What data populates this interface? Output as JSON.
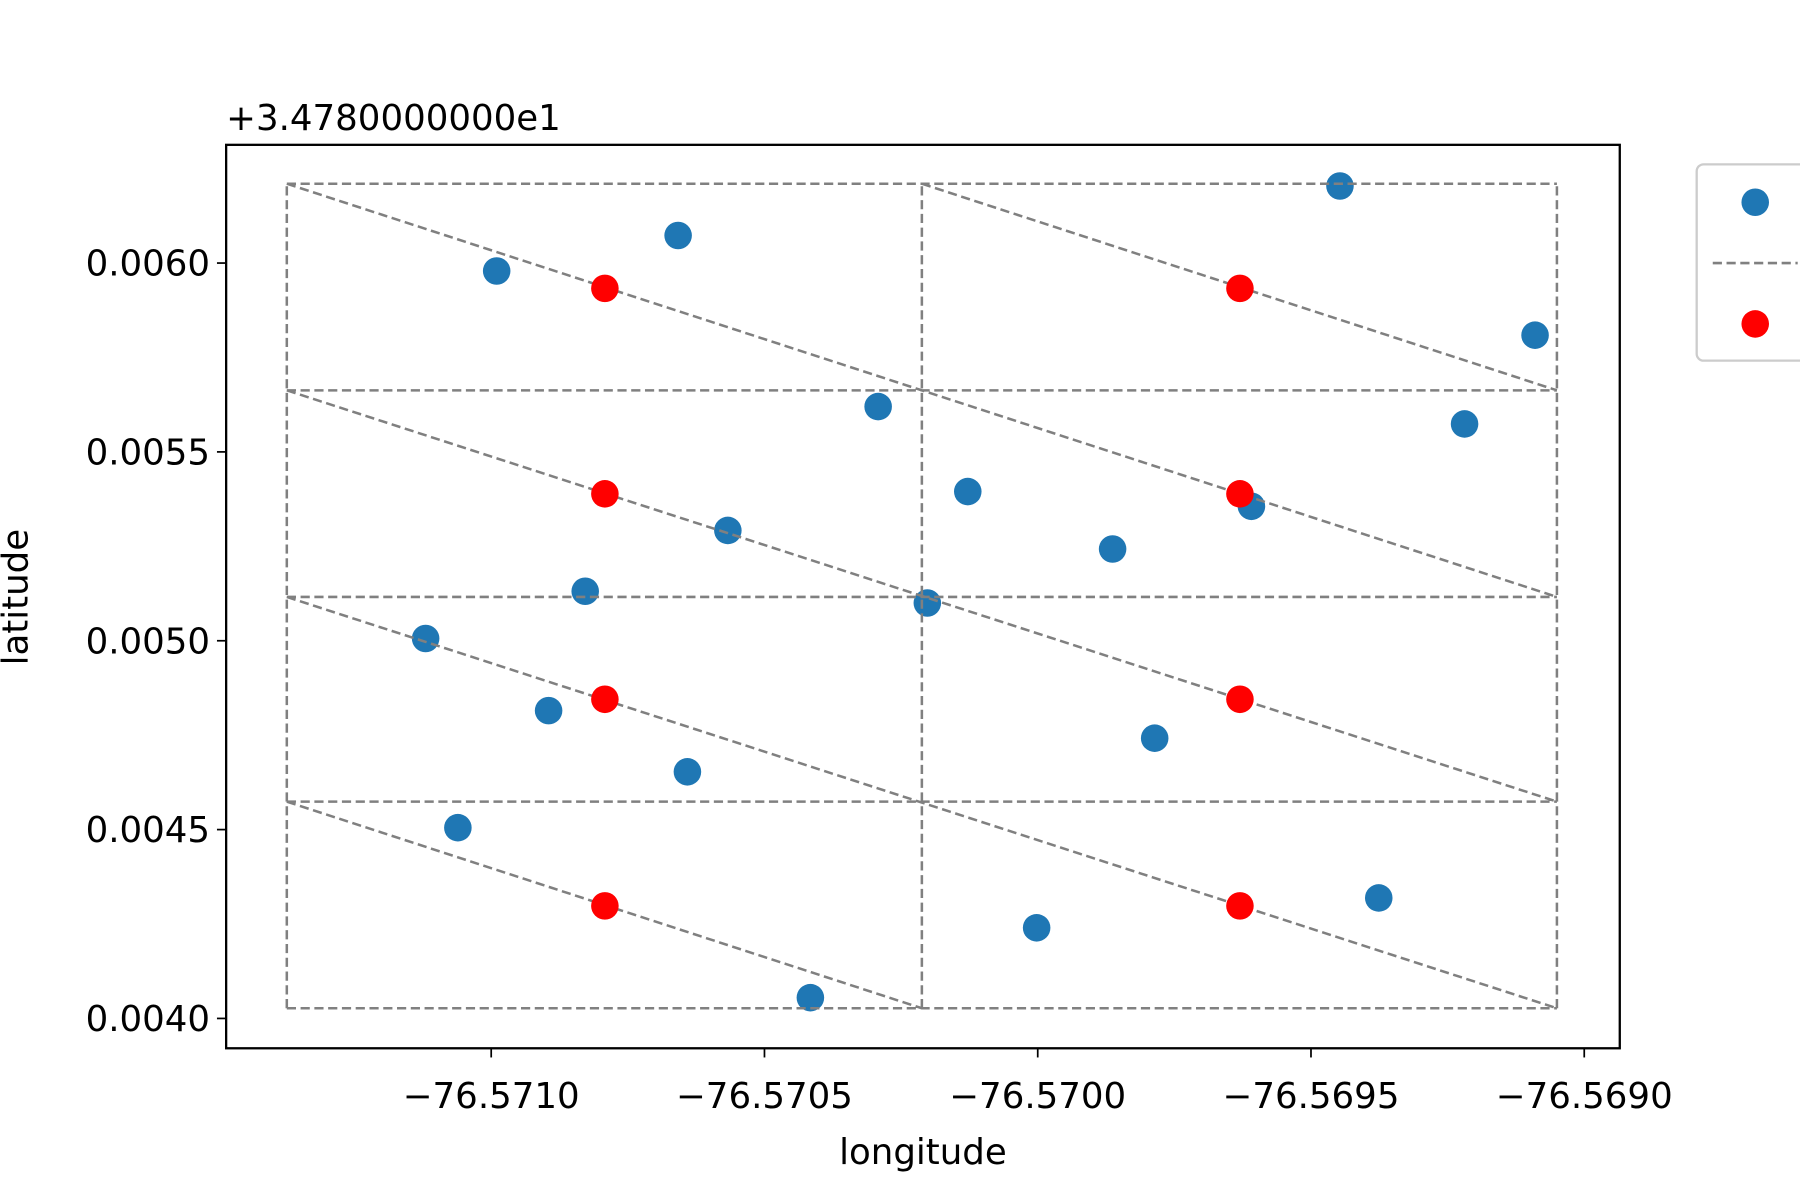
{
  "chart_data": {
    "type": "scatter",
    "xlabel": "longitude",
    "ylabel": "latitude",
    "y_offset_text": "+3.4780000000e1",
    "xlim": [
      -76.571485,
      -76.568935
    ],
    "ylim": [
      0.003921,
      0.006313
    ],
    "xticks": [
      {
        "value": -76.571,
        "label": "−76.5710"
      },
      {
        "value": -76.5705,
        "label": "−76.5705"
      },
      {
        "value": -76.57,
        "label": "−76.5700"
      },
      {
        "value": -76.5695,
        "label": "−76.5695"
      },
      {
        "value": -76.569,
        "label": "−76.5690"
      }
    ],
    "yticks": [
      {
        "value": 0.004,
        "label": "0.0040"
      },
      {
        "value": 0.0045,
        "label": "0.0045"
      },
      {
        "value": 0.005,
        "label": "0.0050"
      },
      {
        "value": 0.0055,
        "label": "0.0055"
      },
      {
        "value": 0.006,
        "label": "0.0060"
      }
    ],
    "legend": "outside-right",
    "series": [
      {
        "type": "scatter",
        "color": "#1f77b4",
        "x": [
          -76.57099,
          -76.570658,
          -76.569447,
          -76.56909,
          -76.570292,
          -76.569219,
          -76.570128,
          -76.569609,
          -76.570567,
          -76.569863,
          -76.570828,
          -76.570202,
          -76.57112,
          -76.570895,
          -76.569786,
          -76.570641,
          -76.571061,
          -76.569376,
          -76.570002,
          -76.570416
        ],
        "y": [
          0.005979,
          0.006073,
          0.006204,
          0.005809,
          0.00562,
          0.005574,
          0.005395,
          0.005356,
          0.005292,
          0.005243,
          0.005131,
          0.0051,
          0.005006,
          0.004815,
          0.004742,
          0.004653,
          0.004505,
          0.004319,
          0.00424,
          0.004055
        ]
      },
      {
        "type": "line",
        "color": "#808080",
        "dashed": true,
        "x": [
          -76.571374,
          -76.571374,
          null,
          -76.570212,
          -76.570212,
          null,
          -76.56905,
          -76.56905,
          null,
          -76.571374,
          -76.56905,
          null,
          -76.571374,
          -76.56905,
          null,
          -76.571374,
          -76.56905,
          null,
          -76.571374,
          -76.56905,
          null,
          -76.571374,
          -76.56905,
          null,
          -76.571374,
          -76.56905,
          null,
          -76.571374,
          -76.56905,
          null,
          -76.571374,
          -76.56905,
          null,
          -76.571374,
          -76.570212,
          null,
          -76.570212,
          -76.56905
        ],
        "y": [
          0.004027,
          0.00621,
          null,
          0.004027,
          0.00621,
          null,
          0.004027,
          0.00621,
          null,
          0.00621,
          0.00621,
          null,
          0.005663,
          0.005663,
          null,
          0.005116,
          0.005116,
          null,
          0.004574,
          0.004574,
          null,
          0.004027,
          0.004027,
          null,
          0.00621,
          0.005116,
          null,
          0.005663,
          0.004574,
          null,
          0.005116,
          0.004027,
          null,
          0.004574,
          0.004027,
          null,
          0.00621,
          0.005663
        ]
      },
      {
        "type": "scatter",
        "color": "#ff0000",
        "x": [
          -76.570792,
          -76.56963,
          -76.570792,
          -76.56963,
          -76.570792,
          -76.56963,
          -76.570792,
          -76.56963
        ],
        "y": [
          0.005933,
          0.005933,
          0.005389,
          0.005389,
          0.004845,
          0.004845,
          0.004298,
          0.004298
        ]
      }
    ]
  }
}
